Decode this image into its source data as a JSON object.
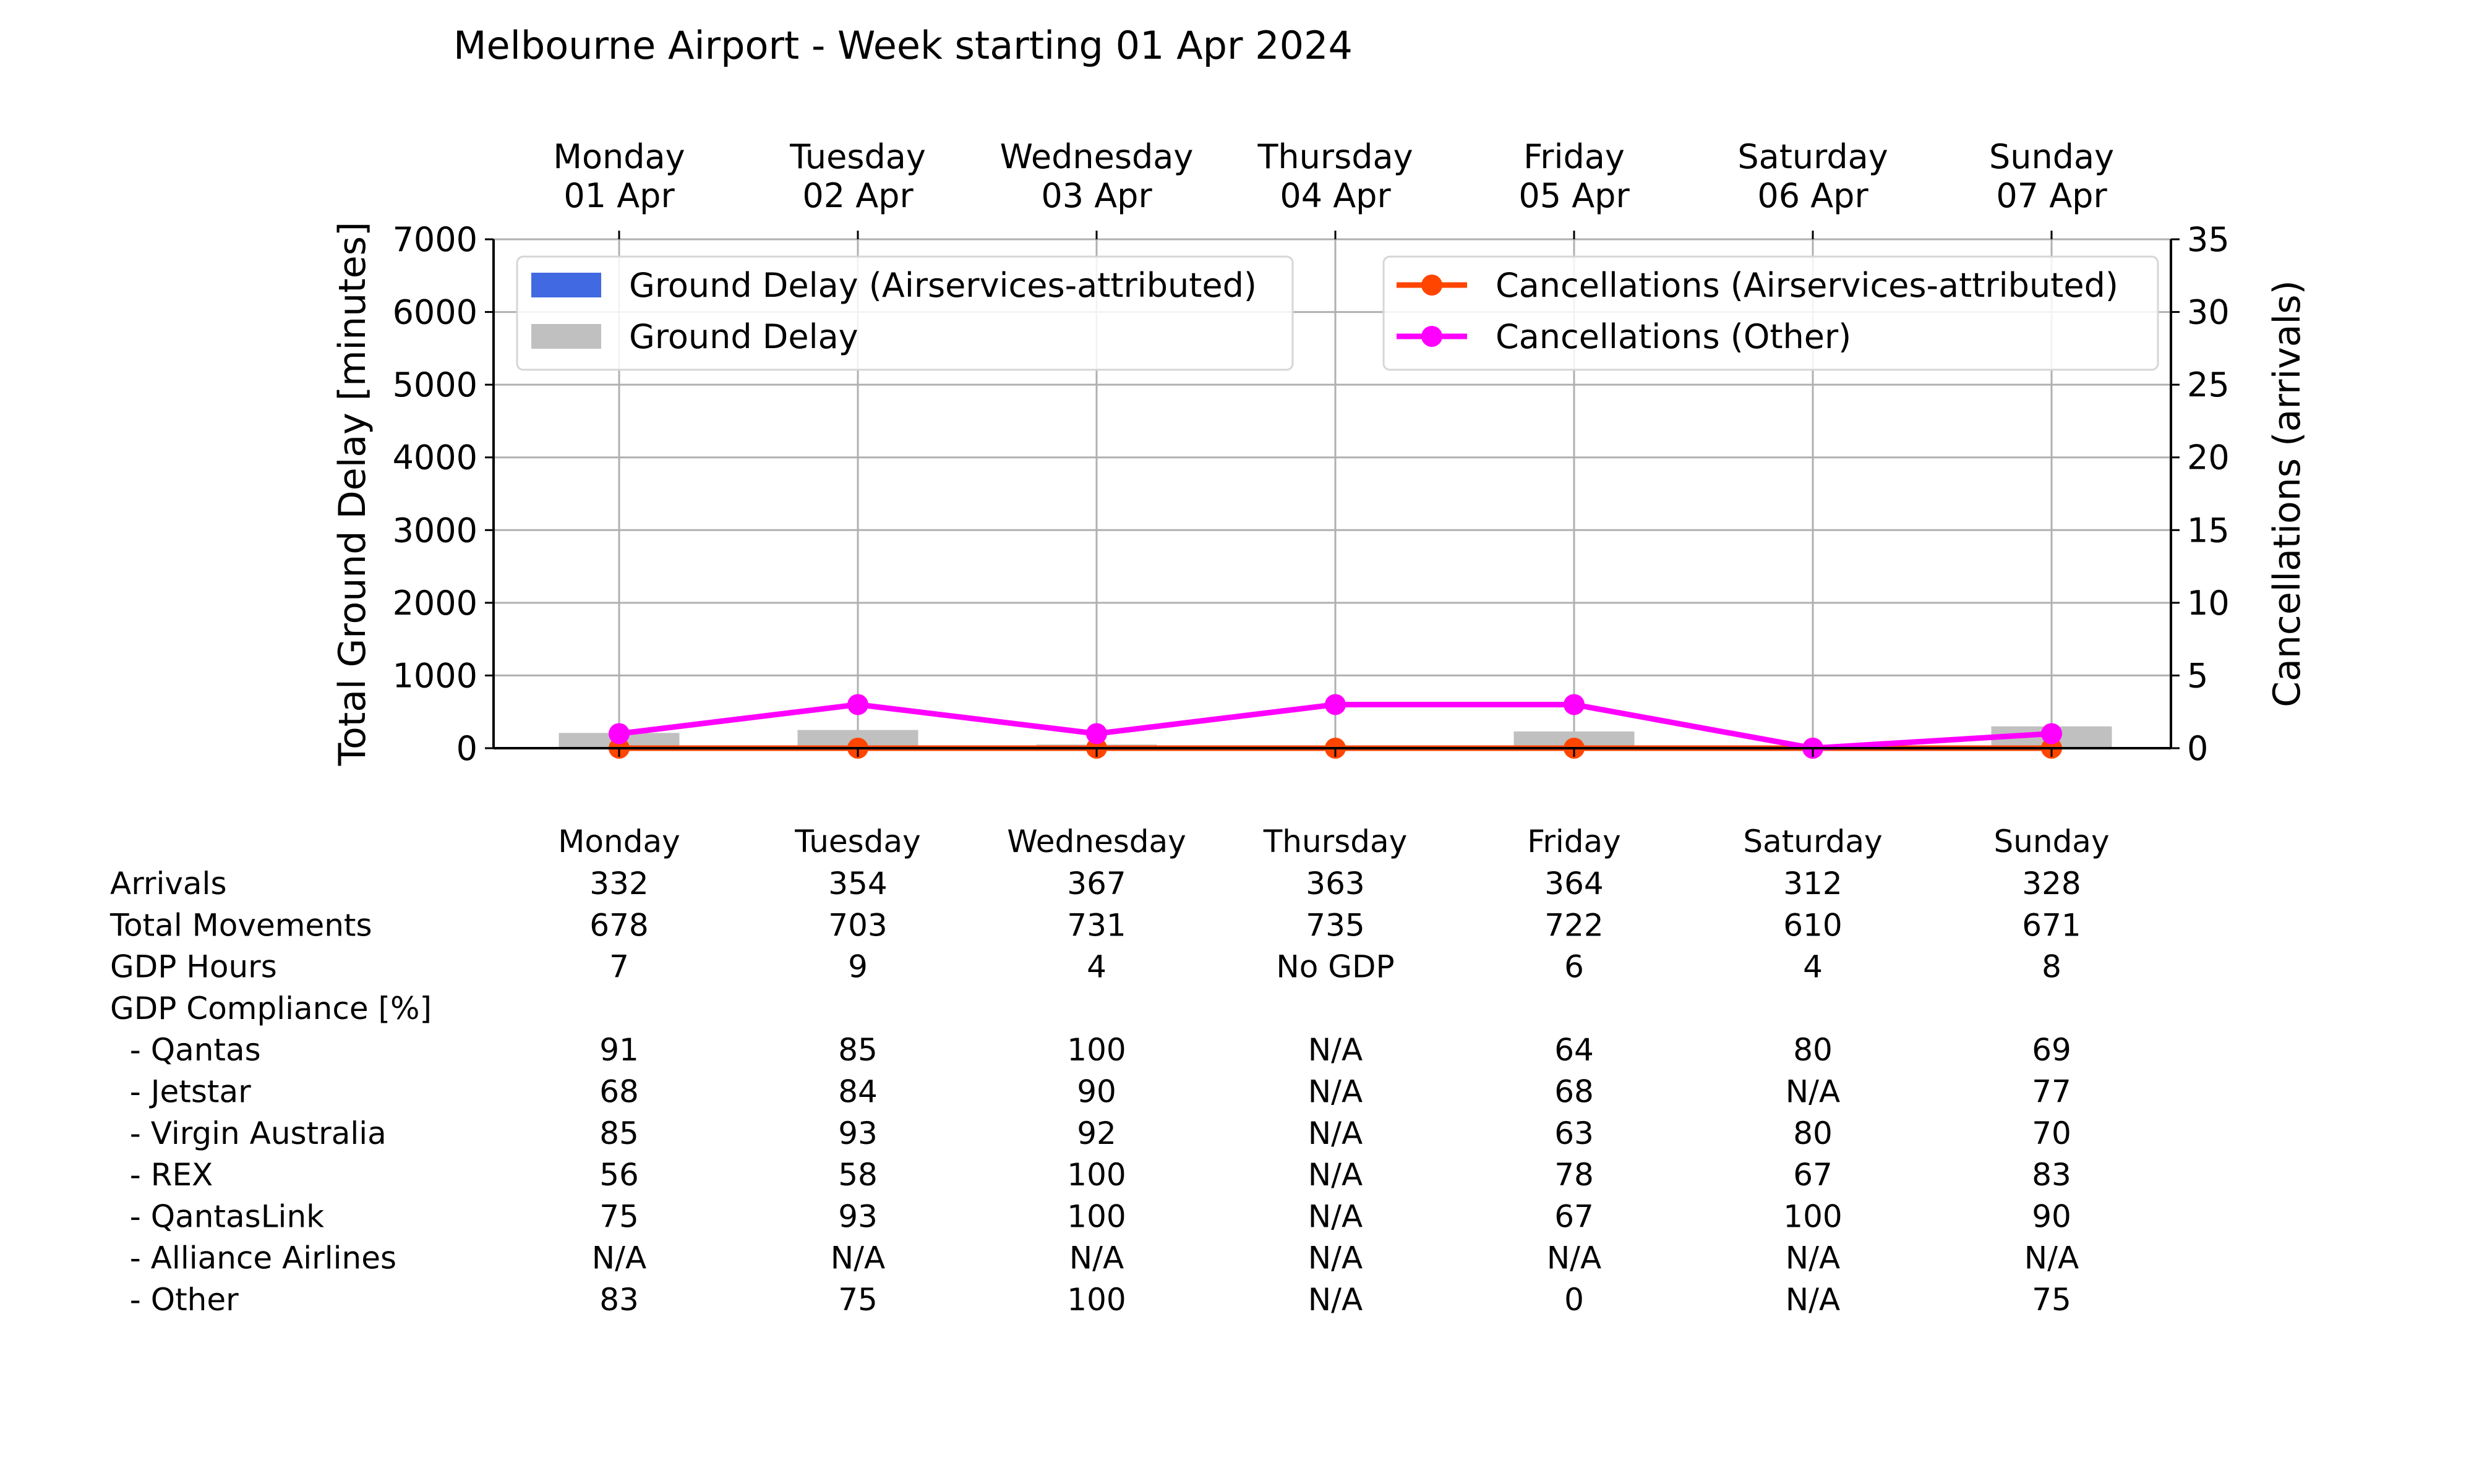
{
  "chart_data": {
    "type": "bar",
    "title": "Melbourne Airport - Week starting 01 Apr 2024",
    "categories": [
      "Monday\n01 Apr",
      "Tuesday\n02 Apr",
      "Wednesday\n03 Apr",
      "Thursday\n04 Apr",
      "Friday\n05 Apr",
      "Saturday\n06 Apr",
      "Sunday\n07 Apr"
    ],
    "ylabel": "Total Ground Delay [minutes]",
    "ylim": [
      0,
      7000
    ],
    "yticks": [
      0,
      1000,
      2000,
      3000,
      4000,
      5000,
      6000,
      7000
    ],
    "y2label": "Cancellations (arrivals)",
    "y2lim": [
      0,
      35
    ],
    "y2ticks": [
      0,
      5,
      10,
      15,
      20,
      25,
      30,
      35
    ],
    "grid": true,
    "bar_series": [
      {
        "name": "Ground Delay (Airservices-attributed)",
        "color": "#4169e1",
        "values": [
          0,
          0,
          0,
          0,
          0,
          0,
          0
        ]
      },
      {
        "name": "Ground Delay",
        "color": "#c0c0c0",
        "values": [
          210,
          250,
          50,
          0,
          230,
          0,
          300
        ]
      }
    ],
    "line_series": [
      {
        "name": "Cancellations (Airservices-attributed)",
        "color": "#ff4500",
        "axis": "right",
        "values": [
          0,
          0,
          0,
          0,
          0,
          0,
          0
        ]
      },
      {
        "name": "Cancellations (Other)",
        "color": "#ff00ff",
        "axis": "right",
        "values": [
          1,
          3,
          1,
          3,
          3,
          0,
          1
        ]
      }
    ],
    "legend_left_position": "upper left",
    "legend_right_position": "upper right"
  },
  "table": {
    "columns": [
      "Monday",
      "Tuesday",
      "Wednesday",
      "Thursday",
      "Friday",
      "Saturday",
      "Sunday"
    ],
    "rows": [
      {
        "label": "Arrivals",
        "values": [
          "332",
          "354",
          "367",
          "363",
          "364",
          "312",
          "328"
        ]
      },
      {
        "label": "Total Movements",
        "values": [
          "678",
          "703",
          "731",
          "735",
          "722",
          "610",
          "671"
        ]
      },
      {
        "label": "GDP Hours",
        "values": [
          "7",
          "9",
          "4",
          "No GDP",
          "6",
          "4",
          "8"
        ]
      },
      {
        "label": "GDP Compliance [%]",
        "values": [
          "",
          "",
          "",
          "",
          "",
          "",
          ""
        ]
      },
      {
        "label": "  - Qantas",
        "values": [
          "91",
          "85",
          "100",
          "N/A",
          "64",
          "80",
          "69"
        ]
      },
      {
        "label": "  - Jetstar",
        "values": [
          "68",
          "84",
          "90",
          "N/A",
          "68",
          "N/A",
          "77"
        ]
      },
      {
        "label": "  - Virgin Australia",
        "values": [
          "85",
          "93",
          "92",
          "N/A",
          "63",
          "80",
          "70"
        ]
      },
      {
        "label": "  - REX",
        "values": [
          "56",
          "58",
          "100",
          "N/A",
          "78",
          "67",
          "83"
        ]
      },
      {
        "label": "  - QantasLink",
        "values": [
          "75",
          "93",
          "100",
          "N/A",
          "67",
          "100",
          "90"
        ]
      },
      {
        "label": "  - Alliance Airlines",
        "values": [
          "N/A",
          "N/A",
          "N/A",
          "N/A",
          "N/A",
          "N/A",
          "N/A"
        ]
      },
      {
        "label": "  - Other",
        "values": [
          "83",
          "75",
          "100",
          "N/A",
          "0",
          "N/A",
          "75"
        ]
      }
    ]
  }
}
